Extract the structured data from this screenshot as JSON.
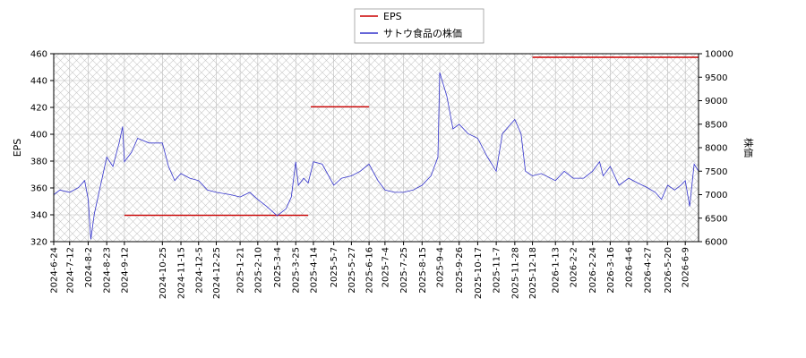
{
  "chart_data": {
    "type": "line",
    "title": "",
    "xlabel": "",
    "ylabel_left": "EPS",
    "ylabel_right": "株価",
    "ylim_left": [
      320,
      460
    ],
    "ylim_right": [
      6000,
      10000
    ],
    "yticks_left": [
      "320",
      "340",
      "360",
      "380",
      "400",
      "420",
      "440",
      "460"
    ],
    "yticks_right": [
      "6000",
      "6500",
      "7000",
      "7500",
      "8000",
      "8500",
      "9000",
      "9500",
      "10000"
    ],
    "xlim": [
      "2024-06-24",
      "2026-06-24"
    ],
    "xticks": [
      "2024-6-24",
      "2024-7-12",
      "2024-8-2",
      "2024-8-23",
      "2024-9-12",
      "2024-10-25",
      "2024-11-15",
      "2024-12-5",
      "2024-12-25",
      "2025-1-21",
      "2025-2-10",
      "2025-3-4",
      "2025-3-25",
      "2025-4-14",
      "2025-5-7",
      "2025-5-27",
      "2025-6-16",
      "2025-7-4",
      "2025-7-25",
      "2025-8-15",
      "2025-9-4",
      "2025-9-26",
      "2025-10-17",
      "2025-11-7",
      "2025-11-28",
      "2025-12-18",
      "2026-1-13",
      "2026-2-2",
      "2026-2-24",
      "2026-3-16",
      "2026-4-6",
      "2026-4-27",
      "2026-5-20",
      "2026-6-9"
    ],
    "grid": true,
    "legend_position": "top-center",
    "series": [
      {
        "name": "EPS",
        "color": "#cc0000",
        "axis": "left",
        "segments": [
          {
            "x": [
              "2024-09-12",
              "2025-04-08"
            ],
            "y": [
              339.6,
              339.6
            ]
          },
          {
            "x": [
              "2025-04-11",
              "2025-06-16"
            ],
            "y": [
              420.5,
              420.5
            ]
          },
          {
            "x": [
              "2025-12-18",
              "2026-06-24"
            ],
            "y": [
              457.3,
              457.3
            ]
          }
        ]
      },
      {
        "name": "サトウ食品の株価",
        "color": "#3333cc",
        "axis": "right",
        "points": [
          [
            "2024-06-24",
            7000
          ],
          [
            "2024-07-01",
            7100
          ],
          [
            "2024-07-12",
            7050
          ],
          [
            "2024-07-22",
            7150
          ],
          [
            "2024-07-29",
            7300
          ],
          [
            "2024-08-02",
            6900
          ],
          [
            "2024-08-05",
            6050
          ],
          [
            "2024-08-09",
            6600
          ],
          [
            "2024-08-16",
            7200
          ],
          [
            "2024-08-23",
            7800
          ],
          [
            "2024-08-30",
            7600
          ],
          [
            "2024-09-06",
            8100
          ],
          [
            "2024-09-10",
            8450
          ],
          [
            "2024-09-12",
            7700
          ],
          [
            "2024-09-20",
            7900
          ],
          [
            "2024-09-27",
            8200
          ],
          [
            "2024-10-10",
            8100
          ],
          [
            "2024-10-25",
            8100
          ],
          [
            "2024-11-01",
            7600
          ],
          [
            "2024-11-08",
            7300
          ],
          [
            "2024-11-15",
            7450
          ],
          [
            "2024-11-25",
            7350
          ],
          [
            "2024-12-05",
            7300
          ],
          [
            "2024-12-15",
            7100
          ],
          [
            "2024-12-25",
            7050
          ],
          [
            "2025-01-10",
            7000
          ],
          [
            "2025-01-21",
            6950
          ],
          [
            "2025-02-01",
            7050
          ],
          [
            "2025-02-10",
            6900
          ],
          [
            "2025-02-20",
            6750
          ],
          [
            "2025-03-04",
            6550
          ],
          [
            "2025-03-14",
            6700
          ],
          [
            "2025-03-20",
            6950
          ],
          [
            "2025-03-25",
            7700
          ],
          [
            "2025-03-28",
            7200
          ],
          [
            "2025-04-03",
            7350
          ],
          [
            "2025-04-08",
            7250
          ],
          [
            "2025-04-14",
            7700
          ],
          [
            "2025-04-24",
            7650
          ],
          [
            "2025-05-07",
            7200
          ],
          [
            "2025-05-16",
            7350
          ],
          [
            "2025-05-27",
            7400
          ],
          [
            "2025-06-06",
            7500
          ],
          [
            "2025-06-16",
            7650
          ],
          [
            "2025-06-26",
            7300
          ],
          [
            "2025-07-04",
            7100
          ],
          [
            "2025-07-15",
            7050
          ],
          [
            "2025-07-25",
            7050
          ],
          [
            "2025-08-05",
            7100
          ],
          [
            "2025-08-15",
            7200
          ],
          [
            "2025-08-25",
            7400
          ],
          [
            "2025-09-02",
            7800
          ],
          [
            "2025-09-04",
            9600
          ],
          [
            "2025-09-12",
            9100
          ],
          [
            "2025-09-19",
            8400
          ],
          [
            "2025-09-26",
            8500
          ],
          [
            "2025-10-06",
            8300
          ],
          [
            "2025-10-17",
            8200
          ],
          [
            "2025-10-28",
            7800
          ],
          [
            "2025-11-07",
            7500
          ],
          [
            "2025-11-14",
            8300
          ],
          [
            "2025-11-21",
            8450
          ],
          [
            "2025-11-28",
            8600
          ],
          [
            "2025-12-05",
            8300
          ],
          [
            "2025-12-10",
            7500
          ],
          [
            "2025-12-18",
            7400
          ],
          [
            "2025-12-28",
            7450
          ],
          [
            "2026-01-13",
            7300
          ],
          [
            "2026-01-23",
            7500
          ],
          [
            "2026-02-02",
            7350
          ],
          [
            "2026-02-14",
            7350
          ],
          [
            "2026-02-24",
            7500
          ],
          [
            "2026-03-04",
            7700
          ],
          [
            "2026-03-08",
            7400
          ],
          [
            "2026-03-16",
            7600
          ],
          [
            "2026-03-26",
            7200
          ],
          [
            "2026-04-06",
            7350
          ],
          [
            "2026-04-16",
            7250
          ],
          [
            "2026-04-27",
            7150
          ],
          [
            "2026-05-06",
            7050
          ],
          [
            "2026-05-13",
            6900
          ],
          [
            "2026-05-20",
            7200
          ],
          [
            "2026-05-28",
            7100
          ],
          [
            "2026-06-04",
            7200
          ],
          [
            "2026-06-09",
            7300
          ],
          [
            "2026-06-14",
            6750
          ],
          [
            "2026-06-19",
            7650
          ],
          [
            "2026-06-24",
            7500
          ]
        ]
      }
    ]
  }
}
